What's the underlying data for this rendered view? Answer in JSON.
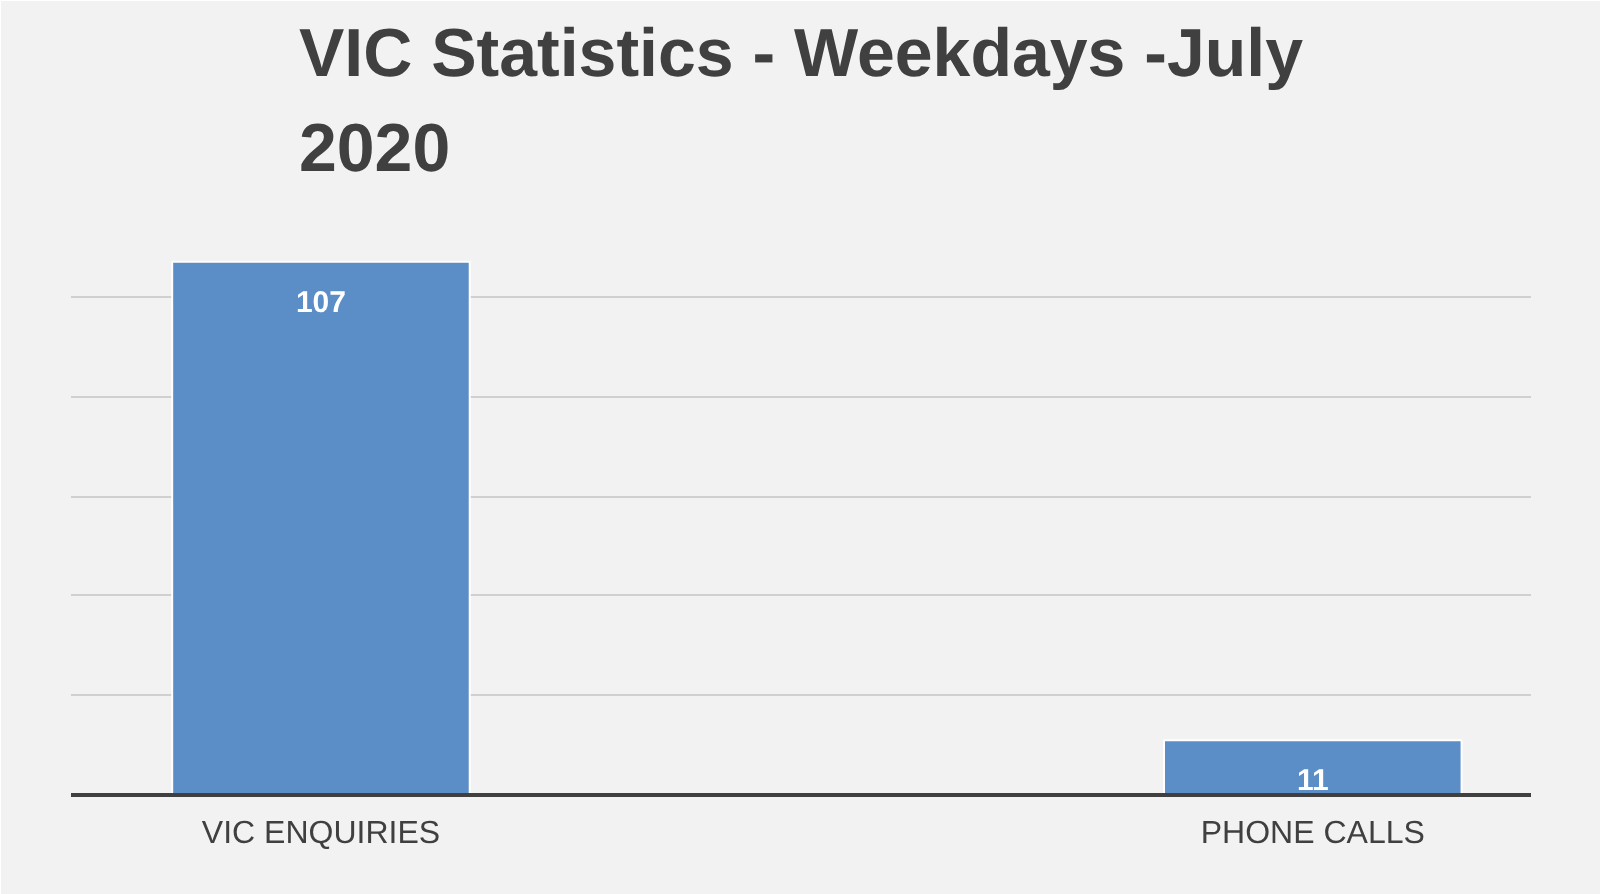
{
  "chart_data": {
    "type": "bar",
    "title": "VIC Statistics - Weekdays -July 2020",
    "categories": [
      "VIC ENQUIRIES",
      "PHONE CALLS"
    ],
    "values": [
      107,
      11
    ],
    "color": "#5b8ec7",
    "ylim": [
      0,
      120
    ],
    "yticks": [
      {
        "value": 0,
        "label": null
      },
      {
        "value": 20,
        "label": null
      },
      {
        "value": 40,
        "label": null
      },
      {
        "value": 60,
        "label": null
      },
      {
        "value": 80,
        "label": null
      },
      {
        "value": 100,
        "label": null
      },
      {
        "value": 120,
        "label": null
      }
    ],
    "grid": "y",
    "tick_labels": "x",
    "data_labels": true
  }
}
